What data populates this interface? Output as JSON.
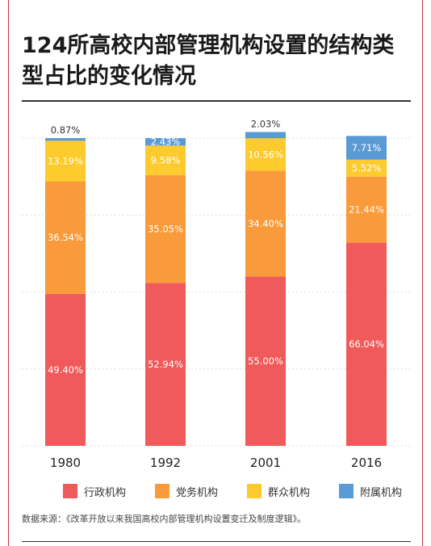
{
  "chart_data": {
    "type": "bar",
    "stacked": true,
    "title": "124所高校内部管理机构设置的结构类型占比的变化情况",
    "categories": [
      "1980",
      "1992",
      "2001",
      "2016"
    ],
    "series": [
      {
        "name": "行政机构",
        "color": "#f05a5a",
        "values": [
          49.4,
          52.94,
          55.0,
          66.04
        ],
        "labels": [
          "49.40%",
          "52.94%",
          "55.00%",
          "66.04%"
        ]
      },
      {
        "name": "党务机构",
        "color": "#f99b3a",
        "values": [
          36.54,
          35.05,
          34.4,
          21.44
        ],
        "labels": [
          "36.54%",
          "35.05%",
          "34.40%",
          "21.44%"
        ]
      },
      {
        "name": "群众机构",
        "color": "#fdcb2e",
        "values": [
          13.19,
          9.58,
          10.56,
          5.52
        ],
        "labels": [
          "13.19%",
          "9.58%",
          "10.56%",
          "5.52%"
        ]
      },
      {
        "name": "附属机构",
        "color": "#5b9bd5",
        "values": [
          0.87,
          2.43,
          2.03,
          7.71
        ],
        "labels": [
          "0.87%",
          "2.43%",
          "2.03%",
          "7.71%"
        ]
      }
    ],
    "ylim": [
      0,
      100
    ],
    "grid": true,
    "legend_position": "bottom"
  },
  "source": "数据来源：《改革开放以来我国高校内部管理机构设置变迁及制度逻辑》。"
}
